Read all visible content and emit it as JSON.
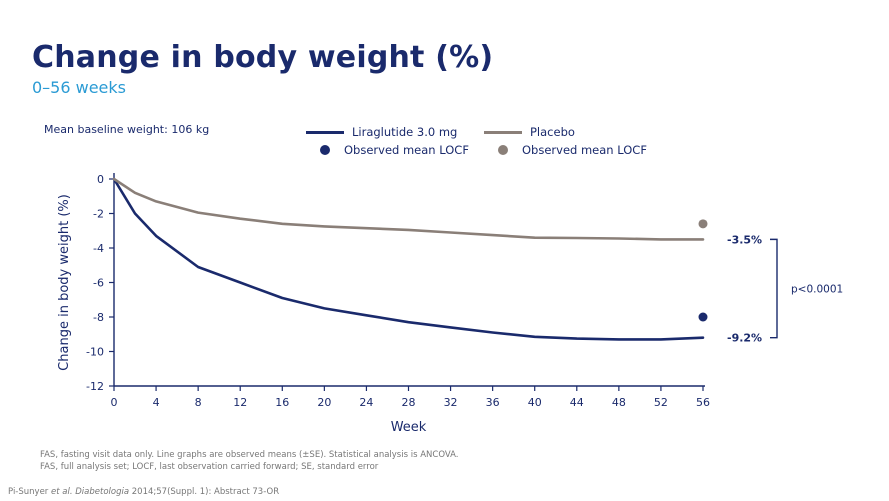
{
  "header": {
    "title": "Change in body weight (%)",
    "subtitle": "0–56 weeks"
  },
  "baseline_note": "Mean baseline weight: 106 kg",
  "legend": {
    "lira_line": "Liraglutide 3.0 mg",
    "lira_dot": "Observed mean LOCF",
    "placebo_line": "Placebo",
    "placebo_dot": "Observed mean LOCF"
  },
  "colors": {
    "liraglutide": "#1a2a6c",
    "placebo": "#8a7f78"
  },
  "chart_data": {
    "type": "line",
    "xlabel": "Week",
    "ylabel": "Change in body weight (%)",
    "xlim": [
      0,
      56
    ],
    "ylim": [
      -12,
      0
    ],
    "xticks": [
      0,
      4,
      8,
      12,
      16,
      20,
      24,
      28,
      32,
      36,
      40,
      44,
      48,
      52,
      56
    ],
    "yticks": [
      0,
      -2,
      -4,
      -6,
      -8,
      -10,
      -12
    ],
    "series": [
      {
        "name": "Liraglutide 3.0 mg",
        "x": [
          0,
          2,
          4,
          8,
          12,
          16,
          20,
          24,
          28,
          32,
          36,
          40,
          44,
          48,
          52,
          56
        ],
        "y": [
          0,
          -2.0,
          -3.3,
          -5.1,
          -6.0,
          -6.9,
          -7.5,
          -7.9,
          -8.3,
          -8.6,
          -8.9,
          -9.15,
          -9.25,
          -9.3,
          -9.3,
          -9.2
        ],
        "locf": -8.0,
        "end_label": "-9.2%"
      },
      {
        "name": "Placebo",
        "x": [
          0,
          2,
          4,
          8,
          12,
          16,
          20,
          24,
          28,
          32,
          36,
          40,
          44,
          48,
          52,
          56
        ],
        "y": [
          0,
          -0.8,
          -1.3,
          -1.95,
          -2.3,
          -2.6,
          -2.75,
          -2.85,
          -2.95,
          -3.1,
          -3.25,
          -3.4,
          -3.42,
          -3.45,
          -3.5,
          -3.5
        ],
        "locf": -2.6,
        "end_label": "-3.5%"
      }
    ],
    "annotation": "p<0.0001"
  },
  "footnote": {
    "line1": "FAS, fasting visit data only. Line graphs are observed means (±SE). Statistical analysis is ANCOVA.",
    "line2": "FAS, full analysis set; LOCF, last observation carried forward; SE, standard error"
  },
  "reference": {
    "authors": "Pi-Sunyer ",
    "etal": "et al.",
    "journal": "Diabetologia",
    "rest": " 2014;57(Suppl.  1): Abstract 73-OR"
  }
}
